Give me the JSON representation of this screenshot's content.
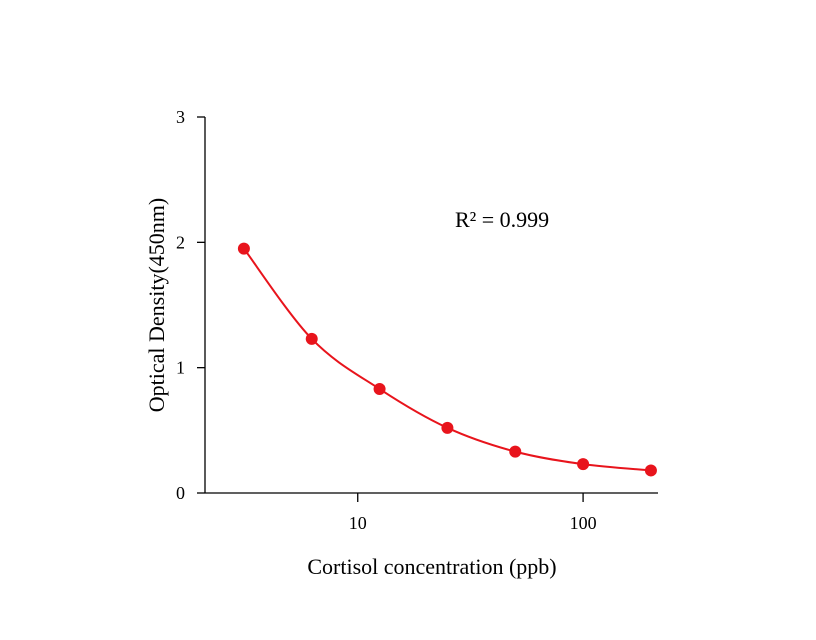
{
  "chart_data": {
    "type": "scatter",
    "title": "",
    "xlabel": "Cortisol concentration (ppb)",
    "ylabel": "Optical Density(450nm)",
    "x_scale": "log",
    "xlim": [
      2.1,
      215
    ],
    "ylim": [
      0,
      3
    ],
    "x_ticks": [
      10,
      100
    ],
    "x_tick_labels": [
      "10",
      "100"
    ],
    "y_ticks": [
      0,
      1,
      2,
      3
    ],
    "y_tick_labels": [
      "0",
      "1",
      "2",
      "3"
    ],
    "grid": false,
    "legend": "none",
    "annotation": "R² = 0.999",
    "series": [
      {
        "x": [
          3.125,
          6.25,
          12.5,
          25,
          50,
          100,
          200
        ],
        "y": [
          1.95,
          1.23,
          0.83,
          0.52,
          0.33,
          0.23,
          0.18
        ],
        "color": "#e8141c",
        "fit_line": true
      }
    ]
  }
}
